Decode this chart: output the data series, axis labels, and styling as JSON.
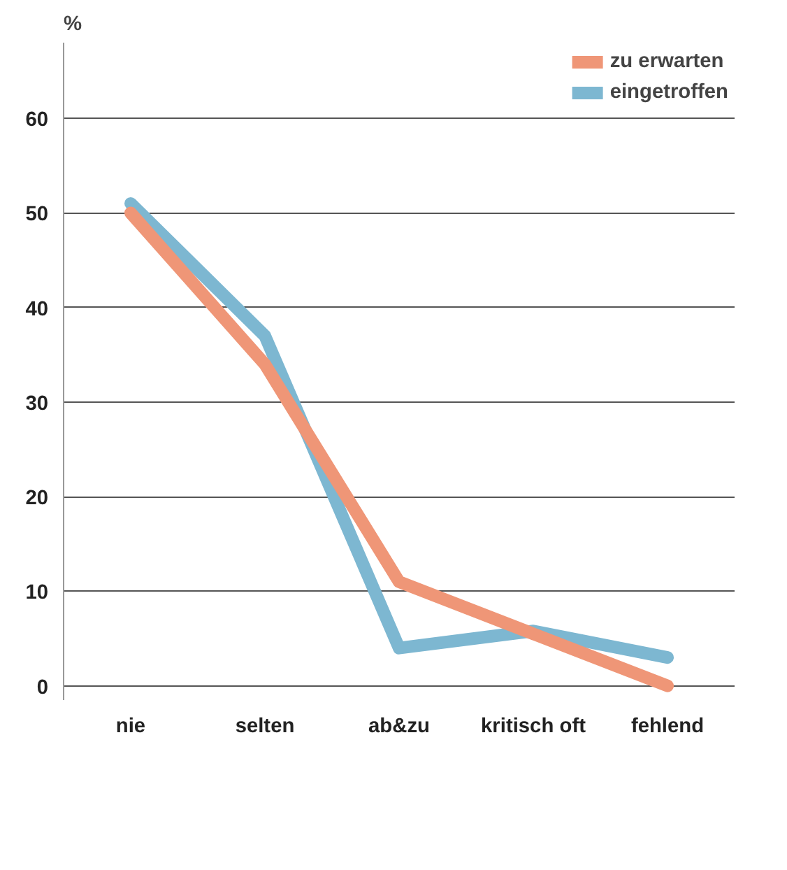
{
  "chart_data": {
    "type": "line",
    "ylabel": "%",
    "categories": [
      "nie",
      "selten",
      "ab&zu",
      "kritisch oft",
      "fehlend"
    ],
    "series": [
      {
        "name": "zu erwarten",
        "color": "#ef9677",
        "values": [
          50,
          34,
          11,
          5.5,
          0
        ]
      },
      {
        "name": "eingetroffen",
        "color": "#7db7d1",
        "values": [
          51,
          37,
          4,
          5.8,
          3
        ]
      }
    ],
    "ylim": [
      -1.5,
      68
    ],
    "yticks": [
      0,
      10,
      20,
      30,
      40,
      50,
      60
    ],
    "grid": "y",
    "legend": "top right",
    "marker": "none",
    "line_style": "solid"
  }
}
